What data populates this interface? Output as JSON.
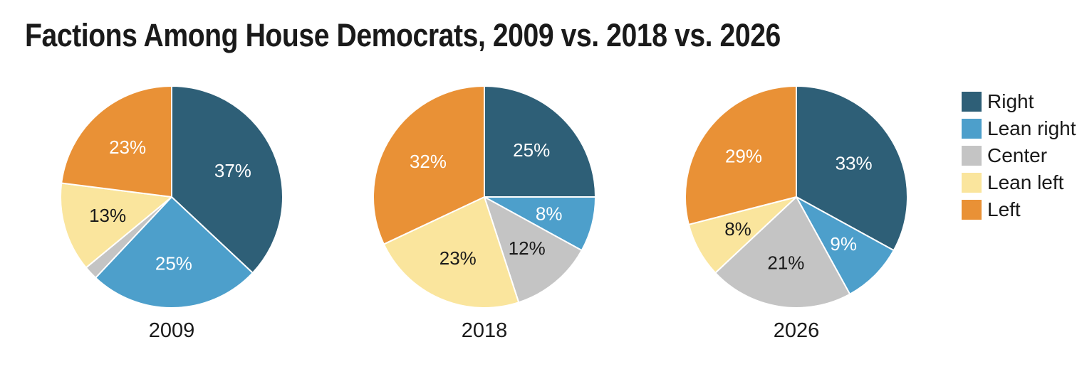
{
  "title": "Factions Among House Democrats, 2009 vs. 2018 vs. 2026",
  "legend": {
    "position": "right",
    "items": [
      {
        "label": "Right",
        "color": "#2e5f77",
        "slice_text_color": "#ffffff"
      },
      {
        "label": "Lean right",
        "color": "#4d9fcb",
        "slice_text_color": "#ffffff"
      },
      {
        "label": "Center",
        "color": "#c4c4c4",
        "slice_text_color": "#1a1a1a"
      },
      {
        "label": "Lean left",
        "color": "#fae59d",
        "slice_text_color": "#1a1a1a"
      },
      {
        "label": "Left",
        "color": "#e99136",
        "slice_text_color": "#ffffff"
      }
    ]
  },
  "chart_data": [
    {
      "type": "pie",
      "title": "2009",
      "categories": [
        "Right",
        "Lean right",
        "Center",
        "Lean left",
        "Left"
      ],
      "values": [
        37,
        25,
        2,
        13,
        23
      ],
      "slice_labels": [
        "37%",
        "25%",
        "",
        "13%",
        "23%"
      ],
      "start_angle_deg": 0,
      "direction": "clockwise"
    },
    {
      "type": "pie",
      "title": "2018",
      "categories": [
        "Right",
        "Lean right",
        "Center",
        "Lean left",
        "Left"
      ],
      "values": [
        25,
        8,
        12,
        23,
        32
      ],
      "slice_labels": [
        "25%",
        "8%",
        "12%",
        "23%",
        "32%"
      ],
      "start_angle_deg": 0,
      "direction": "clockwise"
    },
    {
      "type": "pie",
      "title": "2026",
      "categories": [
        "Right",
        "Lean right",
        "Center",
        "Lean left",
        "Left"
      ],
      "values": [
        33,
        9,
        21,
        8,
        29
      ],
      "slice_labels": [
        "33%",
        "9%",
        "21%",
        "8%",
        "29%"
      ],
      "start_angle_deg": 0,
      "direction": "clockwise"
    }
  ]
}
